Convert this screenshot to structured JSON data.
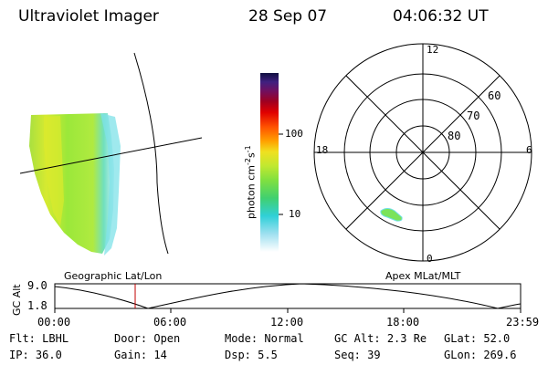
{
  "header": {
    "title": "Ultraviolet Imager",
    "date": "28 Sep 07",
    "time": "04:06:32 UT"
  },
  "colorbar": {
    "label": "photon cm",
    "label_sup1": "-2",
    "label_mid": "s",
    "label_sup2": "-1",
    "ticks": [
      "100",
      "10"
    ]
  },
  "polar": {
    "hours": {
      "top": "12",
      "left": "18",
      "right": "6",
      "bottom": "0"
    },
    "lats": [
      "60",
      "70",
      "80"
    ]
  },
  "panel_labels": {
    "left": "Geographic Lat/Lon",
    "right": "Apex MLat/MLT"
  },
  "alt_plot": {
    "ylabel": "GC Alt",
    "yticks": [
      "9.0",
      "1.8"
    ],
    "xticks": [
      "00:00",
      "06:00",
      "12:00",
      "18:00",
      "23:59"
    ]
  },
  "status": {
    "row1": [
      {
        "label": "Flt:",
        "value": "LBHL"
      },
      {
        "label": "Door:",
        "value": "Open"
      },
      {
        "label": "Mode:",
        "value": "Normal"
      },
      {
        "label": "GC Alt:",
        "value": "2.3 Re"
      },
      {
        "label": "GLat:",
        "value": "52.0"
      }
    ],
    "row2": [
      {
        "label": "IP:",
        "value": "36.0"
      },
      {
        "label": "Gain:",
        "value": "14"
      },
      {
        "label": "Dsp:",
        "value": "5.5"
      },
      {
        "label": "Seq:",
        "value": "39"
      },
      {
        "label": "GLon:",
        "value": "269.6"
      }
    ]
  },
  "colors": {
    "image_green": "#9be83a",
    "image_yellow": "#d7ea2e",
    "image_cyan": "#6fe0e6",
    "marker_red": "#c00000"
  }
}
